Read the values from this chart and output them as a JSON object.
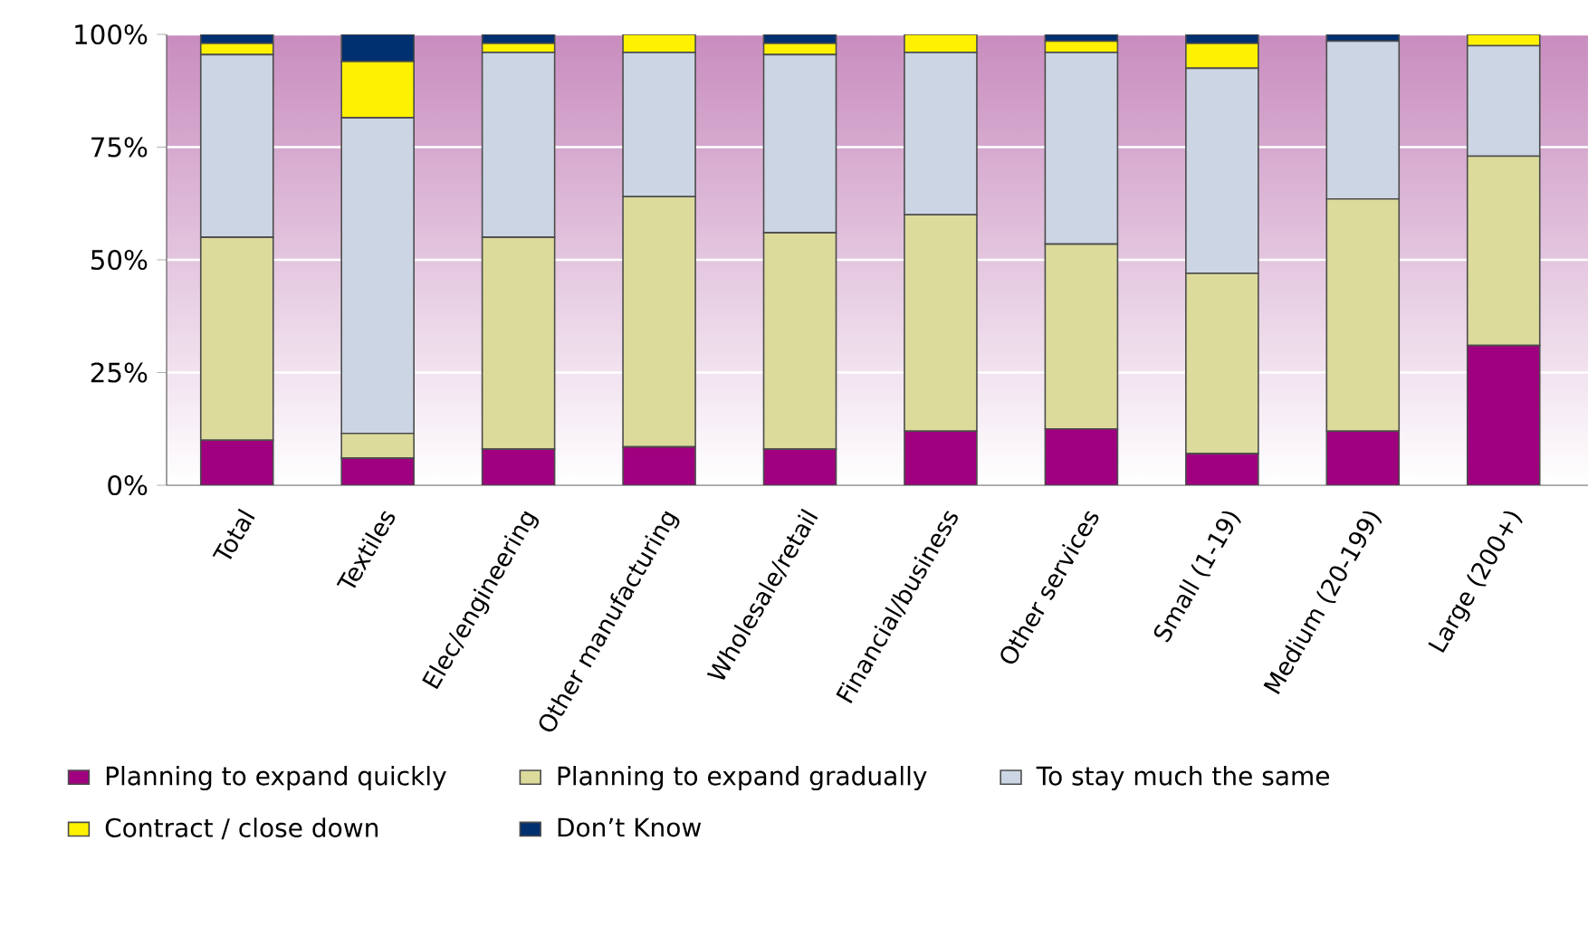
{
  "chart_data": {
    "type": "bar",
    "stacked": true,
    "categories": [
      "Total",
      "Textiles",
      "Elec/engineering",
      "Other manufacturing",
      "Wholesale/retail",
      "Financial/business",
      "Other services",
      "Small (1-19)",
      "Medium (20-199)",
      "Large (200+)"
    ],
    "series": [
      {
        "name": "Planning to expand quickly",
        "color": "#a0007f",
        "values": [
          10,
          6,
          8,
          8.5,
          8,
          12,
          12.5,
          7,
          12,
          31
        ]
      },
      {
        "name": "Planning to expand gradually",
        "color": "#dcdb9b",
        "values": [
          45,
          5.5,
          47,
          55.5,
          48,
          48,
          41,
          40,
          51.5,
          42
        ]
      },
      {
        "name": "To stay much the same",
        "color": "#ccd5e3",
        "values": [
          40.5,
          70,
          41,
          32,
          39.5,
          36,
          42.5,
          45.5,
          35,
          24.5
        ]
      },
      {
        "name": "Contract / close down",
        "color": "#fff200",
        "values": [
          2.5,
          12.5,
          2,
          4,
          2.5,
          4,
          2.5,
          5.5,
          0,
          2.5
        ]
      },
      {
        "name": "Don’t Know",
        "color": "#003070",
        "values": [
          2,
          6,
          2,
          0,
          2,
          0,
          1.5,
          2,
          1.5,
          0
        ]
      }
    ],
    "ylim": [
      0,
      100
    ],
    "yticks": [
      {
        "value": 0,
        "label": "0%"
      },
      {
        "value": 25,
        "label": "25%"
      },
      {
        "value": 50,
        "label": "50%"
      },
      {
        "value": 75,
        "label": "75%"
      },
      {
        "value": 100,
        "label": "100%"
      }
    ],
    "grid": "y",
    "legend": "bottom"
  }
}
